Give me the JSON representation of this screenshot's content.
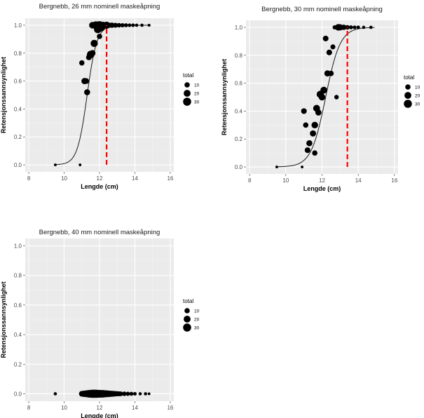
{
  "chart_data": [
    {
      "type": "scatter",
      "title": "Bergnebb, 26 mm nominell maskeåpning",
      "xlabel": "Lengde (cm)",
      "ylabel": "Retensjonssannsynlighet",
      "xlim": [
        7.8,
        16.2
      ],
      "ylim": [
        -0.05,
        1.05
      ],
      "xticks": [
        "8",
        "10",
        "12",
        "14",
        "16"
      ],
      "yticks": [
        "0.0",
        "0.2",
        "0.4",
        "0.6",
        "0.8",
        "1.0"
      ],
      "curve": {
        "l50": 11.3,
        "slope": 3.6
      },
      "threshold_x": 12.4,
      "legend": {
        "title": "total",
        "sizes": [
          10,
          20,
          30
        ]
      },
      "points": [
        {
          "x": 9.5,
          "y": 0.0,
          "total": 1
        },
        {
          "x": 10.9,
          "y": 0.0,
          "total": 1
        },
        {
          "x": 11.0,
          "y": 0.73,
          "total": 10
        },
        {
          "x": 11.15,
          "y": 0.6,
          "total": 15
        },
        {
          "x": 11.25,
          "y": 0.6,
          "total": 12
        },
        {
          "x": 11.3,
          "y": 0.52,
          "total": 14
        },
        {
          "x": 11.4,
          "y": 0.77,
          "total": 12
        },
        {
          "x": 11.5,
          "y": 0.79,
          "total": 25
        },
        {
          "x": 11.6,
          "y": 0.8,
          "total": 15
        },
        {
          "x": 11.7,
          "y": 0.87,
          "total": 22
        },
        {
          "x": 11.6,
          "y": 1.0,
          "total": 18
        },
        {
          "x": 11.8,
          "y": 1.0,
          "total": 28
        },
        {
          "x": 11.9,
          "y": 0.97,
          "total": 25
        },
        {
          "x": 12.0,
          "y": 1.0,
          "total": 30
        },
        {
          "x": 12.1,
          "y": 0.98,
          "total": 20
        },
        {
          "x": 12.0,
          "y": 0.92,
          "total": 10
        },
        {
          "x": 12.2,
          "y": 1.0,
          "total": 20
        },
        {
          "x": 12.4,
          "y": 1.0,
          "total": 22
        },
        {
          "x": 12.5,
          "y": 1.0,
          "total": 12
        },
        {
          "x": 12.7,
          "y": 1.0,
          "total": 10
        },
        {
          "x": 12.9,
          "y": 1.0,
          "total": 8
        },
        {
          "x": 13.1,
          "y": 1.0,
          "total": 6
        },
        {
          "x": 13.3,
          "y": 1.0,
          "total": 5
        },
        {
          "x": 13.5,
          "y": 1.0,
          "total": 4
        },
        {
          "x": 13.7,
          "y": 1.0,
          "total": 3
        },
        {
          "x": 13.9,
          "y": 1.0,
          "total": 3
        },
        {
          "x": 14.1,
          "y": 1.0,
          "total": 2
        },
        {
          "x": 14.4,
          "y": 1.0,
          "total": 2
        },
        {
          "x": 14.8,
          "y": 1.0,
          "total": 1
        }
      ]
    },
    {
      "type": "scatter",
      "title": "Bergnebb, 30 mm nominell maskeåpning",
      "xlabel": "Lengde (cm)",
      "ylabel": "Retensjonssannsynlighet",
      "xlim": [
        7.8,
        16.2
      ],
      "ylim": [
        -0.05,
        1.05
      ],
      "xticks": [
        "8",
        "10",
        "12",
        "14",
        "16"
      ],
      "yticks": [
        "0.0",
        "0.2",
        "0.4",
        "0.6",
        "0.8",
        "1.0"
      ],
      "curve": {
        "l50": 12.2,
        "slope": 2.5
      },
      "threshold_x": 13.4,
      "legend": {
        "title": "total",
        "sizes": [
          10,
          20,
          30
        ]
      },
      "points": [
        {
          "x": 9.5,
          "y": 0.0,
          "total": 1
        },
        {
          "x": 10.9,
          "y": 0.0,
          "total": 1
        },
        {
          "x": 11.0,
          "y": 0.4,
          "total": 12
        },
        {
          "x": 11.1,
          "y": 0.3,
          "total": 10
        },
        {
          "x": 11.2,
          "y": 0.12,
          "total": 12
        },
        {
          "x": 11.3,
          "y": 0.17,
          "total": 14
        },
        {
          "x": 11.5,
          "y": 0.24,
          "total": 15
        },
        {
          "x": 11.6,
          "y": 0.1,
          "total": 10
        },
        {
          "x": 11.6,
          "y": 0.3,
          "total": 18
        },
        {
          "x": 11.7,
          "y": 0.42,
          "total": 20
        },
        {
          "x": 11.8,
          "y": 0.39,
          "total": 15
        },
        {
          "x": 11.9,
          "y": 0.52,
          "total": 22
        },
        {
          "x": 12.0,
          "y": 0.5,
          "total": 18
        },
        {
          "x": 12.1,
          "y": 0.55,
          "total": 20
        },
        {
          "x": 12.2,
          "y": 0.92,
          "total": 12
        },
        {
          "x": 12.3,
          "y": 0.67,
          "total": 15
        },
        {
          "x": 12.4,
          "y": 0.82,
          "total": 12
        },
        {
          "x": 12.5,
          "y": 0.67,
          "total": 10
        },
        {
          "x": 12.6,
          "y": 0.86,
          "total": 8
        },
        {
          "x": 12.8,
          "y": 0.5,
          "total": 6
        },
        {
          "x": 12.7,
          "y": 1.0,
          "total": 5
        },
        {
          "x": 12.9,
          "y": 1.0,
          "total": 18
        },
        {
          "x": 13.0,
          "y": 1.0,
          "total": 15
        },
        {
          "x": 13.2,
          "y": 1.0,
          "total": 10
        },
        {
          "x": 13.4,
          "y": 1.0,
          "total": 6
        },
        {
          "x": 13.6,
          "y": 1.0,
          "total": 4
        },
        {
          "x": 13.8,
          "y": 1.0,
          "total": 3
        },
        {
          "x": 14.0,
          "y": 1.0,
          "total": 3
        },
        {
          "x": 14.3,
          "y": 1.0,
          "total": 2
        },
        {
          "x": 14.7,
          "y": 1.0,
          "total": 2
        }
      ]
    },
    {
      "type": "scatter",
      "title": "Bergnebb, 40 mm nominell maskeåpning",
      "xlabel": "Lengde (cm)",
      "ylabel": "Retensjonssannsynlighet",
      "xlim": [
        7.8,
        16.2
      ],
      "ylim": [
        -0.05,
        1.05
      ],
      "xticks": [
        "8",
        "10",
        "12",
        "14",
        "16"
      ],
      "yticks": [
        "0.0",
        "0.2",
        "0.4",
        "0.6",
        "0.8",
        "1.0"
      ],
      "legend": {
        "title": "total",
        "sizes": [
          10,
          20,
          30
        ]
      },
      "points": [
        {
          "x": 9.5,
          "y": 0.0,
          "total": 2
        },
        {
          "x": 11.0,
          "y": 0.0,
          "total": 12
        },
        {
          "x": 11.1,
          "y": 0.0,
          "total": 15
        },
        {
          "x": 11.2,
          "y": 0.0,
          "total": 18
        },
        {
          "x": 11.3,
          "y": 0.0,
          "total": 22
        },
        {
          "x": 11.4,
          "y": 0.0,
          "total": 25
        },
        {
          "x": 11.5,
          "y": 0.0,
          "total": 28
        },
        {
          "x": 11.6,
          "y": 0.0,
          "total": 30
        },
        {
          "x": 11.7,
          "y": 0.0,
          "total": 30
        },
        {
          "x": 11.8,
          "y": 0.0,
          "total": 30
        },
        {
          "x": 11.9,
          "y": 0.0,
          "total": 28
        },
        {
          "x": 12.0,
          "y": 0.0,
          "total": 28
        },
        {
          "x": 12.1,
          "y": 0.0,
          "total": 25
        },
        {
          "x": 12.2,
          "y": 0.0,
          "total": 25
        },
        {
          "x": 12.3,
          "y": 0.0,
          "total": 22
        },
        {
          "x": 12.4,
          "y": 0.0,
          "total": 20
        },
        {
          "x": 12.5,
          "y": 0.0,
          "total": 18
        },
        {
          "x": 12.6,
          "y": 0.0,
          "total": 16
        },
        {
          "x": 12.7,
          "y": 0.0,
          "total": 14
        },
        {
          "x": 12.8,
          "y": 0.0,
          "total": 12
        },
        {
          "x": 12.9,
          "y": 0.0,
          "total": 10
        },
        {
          "x": 13.0,
          "y": 0.0,
          "total": 9
        },
        {
          "x": 13.1,
          "y": 0.0,
          "total": 8
        },
        {
          "x": 13.2,
          "y": 0.0,
          "total": 7
        },
        {
          "x": 13.4,
          "y": 0.0,
          "total": 6
        },
        {
          "x": 13.6,
          "y": 0.0,
          "total": 5
        },
        {
          "x": 13.8,
          "y": 0.0,
          "total": 4
        },
        {
          "x": 14.0,
          "y": 0.0,
          "total": 3
        },
        {
          "x": 14.3,
          "y": 0.0,
          "total": 2
        },
        {
          "x": 14.6,
          "y": 0.0,
          "total": 2
        },
        {
          "x": 14.8,
          "y": 0.0,
          "total": 1
        }
      ]
    }
  ]
}
